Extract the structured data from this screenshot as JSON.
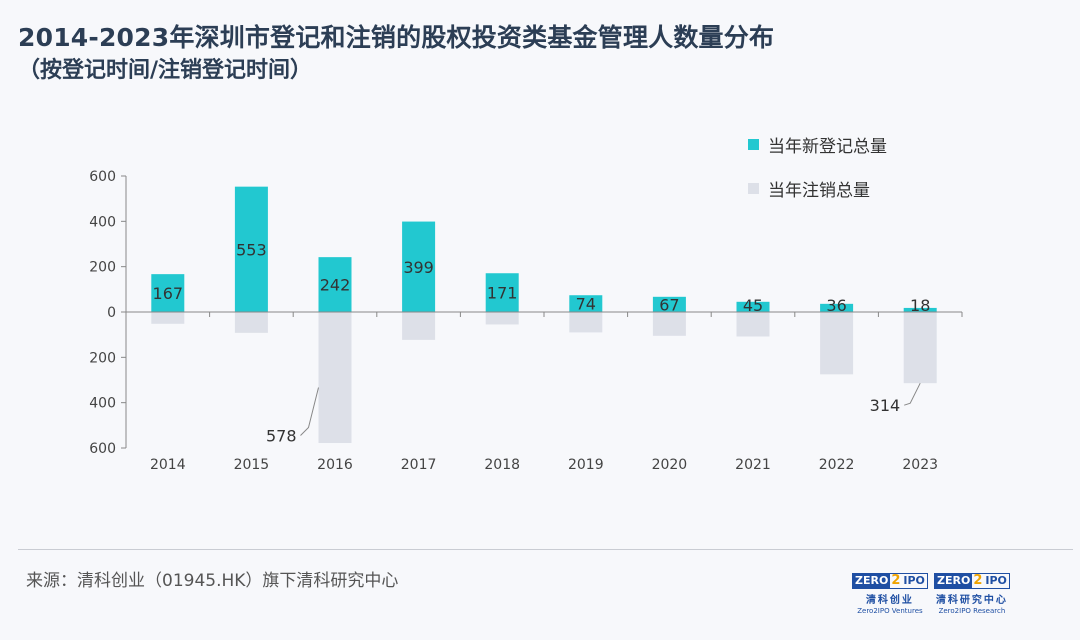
{
  "title": "2014-2023年深圳市登记和注销的股权投资类基金管理人数量分布",
  "subtitle": "（按登记时间/注销登记时间）",
  "legend": [
    {
      "label": "当年新登记总量",
      "color": "#22c8d0"
    },
    {
      "label": "当年注销总量",
      "color": "#dde0e8"
    }
  ],
  "source": "来源：清科创业（01945.HK）旗下清科研究中心",
  "logos": [
    {
      "mark_a": "ZERO",
      "mark_b": "2",
      "mark_c": "IPO",
      "cn": "清科创业",
      "en": "Zero2IPO Ventures"
    },
    {
      "mark_a": "ZERO",
      "mark_b": "2",
      "mark_c": "IPO",
      "cn": "清科研究中心",
      "en": "Zero2IPO Research"
    }
  ],
  "chart_data": {
    "type": "bar",
    "categories": [
      "2014",
      "2015",
      "2016",
      "2017",
      "2018",
      "2019",
      "2020",
      "2021",
      "2022",
      "2023"
    ],
    "series": [
      {
        "name": "当年新登记总量",
        "values": [
          167,
          553,
          242,
          399,
          171,
          74,
          67,
          45,
          36,
          18
        ],
        "color": "#22c8d0"
      },
      {
        "name": "当年注销总量",
        "values": [
          52,
          92,
          578,
          123,
          55,
          90,
          105,
          108,
          275,
          314
        ],
        "color": "#dde0e8"
      }
    ],
    "y_ticks": [
      {
        "value": 600,
        "label": "600"
      },
      {
        "value": 400,
        "label": "400"
      },
      {
        "value": 200,
        "label": "200"
      },
      {
        "value": 0,
        "label": "0"
      },
      {
        "value": -200,
        "label": "200"
      },
      {
        "value": -400,
        "label": "400"
      },
      {
        "value": -600,
        "label": "600"
      }
    ],
    "ylim": [
      -600,
      600
    ],
    "callouts": [
      {
        "category": "2016",
        "series": 1,
        "label": "578"
      },
      {
        "category": "2023",
        "series": 1,
        "label": "314"
      }
    ],
    "grid": false,
    "legend_position": "top-right"
  }
}
